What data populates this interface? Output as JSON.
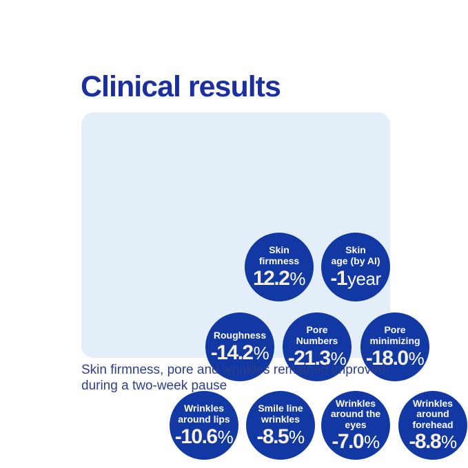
{
  "title": "Clinical results",
  "caption": "Skin firmness, pore and wrinkles remained improved\nduring a two-week pause",
  "colors": {
    "title_blue": "#1c2f9e",
    "bubble_blue": "#1238a3",
    "panel_light_blue": "#e4eef8",
    "value_cream": "#f7f0da",
    "label_white": "#ffffff",
    "caption_blue": "#2c3f8d"
  },
  "circles": [
    {
      "label": "Skin\nfirmness",
      "value": "12.2",
      "suffix": "%"
    },
    {
      "label": "Skin\nage (by AI)",
      "value": "-1",
      "suffix": "year"
    },
    {
      "label": "Roughness",
      "value": "-14.2",
      "suffix": "%"
    },
    {
      "label": "Pore\nNumbers",
      "value": "-21.3",
      "suffix": "%"
    },
    {
      "label": "Pore\nminimizing",
      "value": "-18.0",
      "suffix": "%"
    },
    {
      "label": "Wrinkles\naround lips",
      "value": "-10.6",
      "suffix": "%"
    },
    {
      "label": "Smile line\nwrinkles",
      "value": "-8.5",
      "suffix": "%"
    },
    {
      "label": "Wrinkles\naround the\neyes",
      "value": "-7.0",
      "suffix": "%"
    },
    {
      "label": "Wrinkles\naround\nforehead",
      "value": "-8.8",
      "suffix": "%"
    }
  ],
  "chart_data": {
    "type": "table",
    "title": "Clinical results",
    "categories": [
      "Skin firmness",
      "Skin age (by AI)",
      "Roughness",
      "Pore Numbers",
      "Pore minimizing",
      "Wrinkles around lips",
      "Smile line wrinkles",
      "Wrinkles around the eyes",
      "Wrinkles around forehead"
    ],
    "values": [
      12.2,
      -1,
      -14.2,
      -21.3,
      -18.0,
      -10.6,
      -8.5,
      -7.0,
      -8.8
    ],
    "units": [
      "%",
      "year",
      "%",
      "%",
      "%",
      "%",
      "%",
      "%",
      "%"
    ],
    "annotation": "Skin firmness, pore and wrinkles remained improved during a two-week pause",
    "legend_position": "none",
    "grid": false
  }
}
